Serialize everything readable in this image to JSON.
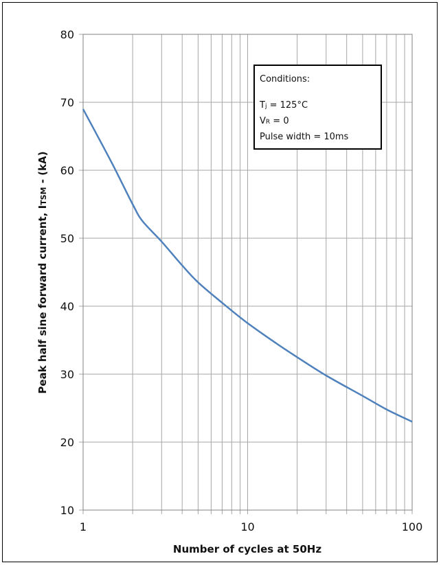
{
  "chart_data": {
    "type": "line",
    "xlabel": "Number of cycles at 50Hz",
    "ylabel_main": "Peak half sine forward current, I",
    "ylabel_sub": "TSM",
    "ylabel_tail": " - (kA)",
    "xscale": "log",
    "xlim": [
      1,
      100
    ],
    "ylim": [
      10,
      80
    ],
    "x_ticks": [
      1,
      10,
      100
    ],
    "y_ticks": [
      10,
      20,
      30,
      40,
      50,
      60,
      70,
      80
    ],
    "grid": true,
    "series": [
      {
        "color": "#4f81bd",
        "x": [
          1,
          1.5,
          2,
          2.3,
          3,
          4,
          5,
          7,
          10,
          15,
          20,
          30,
          50,
          70,
          100
        ],
        "y": [
          69,
          61,
          55,
          52.5,
          49.5,
          46,
          43.5,
          40.5,
          37.5,
          34.5,
          32.5,
          29.8,
          26.8,
          24.8,
          23
        ]
      }
    ],
    "annotation": {
      "title": "Conditions:",
      "line1_main": "T",
      "line1_sub": "j",
      "line1_tail": " = 125°C",
      "line2_main": "V",
      "line2_sub": "R",
      "line2_tail": " = 0",
      "line3": "Pulse width = 10ms"
    }
  }
}
